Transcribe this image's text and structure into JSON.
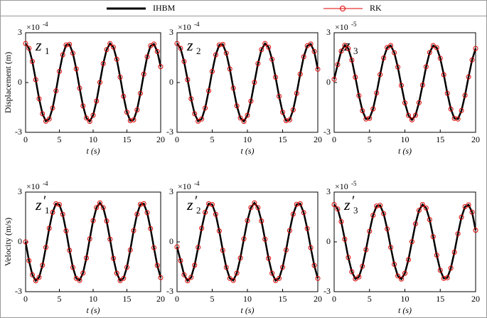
{
  "chart_data": [
    {
      "type": "line",
      "label": "z",
      "label_sub": "1",
      "ylabel": "Displacement (m)",
      "xlabel": "t (s)",
      "y_multiplier": "×10",
      "y_exponent": "-4",
      "xlim": [
        0,
        20
      ],
      "xticks": [
        0,
        5,
        10,
        15,
        20
      ],
      "ylim": [
        -3,
        3
      ],
      "yticks": [
        -3,
        0,
        3
      ],
      "x": [
        0,
        0.5,
        1,
        1.5,
        2,
        2.5,
        3,
        3.5,
        4,
        4.5,
        5,
        5.5,
        6,
        6.5,
        7,
        7.5,
        8,
        8.5,
        9,
        9.5,
        10,
        10.5,
        11,
        11.5,
        12,
        12.5,
        13,
        13.5,
        14,
        14.5,
        15,
        15.5,
        16,
        16.5,
        17,
        17.5,
        18,
        18.5,
        19,
        19.5,
        20
      ],
      "series": [
        {
          "name": "IHBM",
          "color": "#000000",
          "values": [
            2.35,
            2.06,
            1.27,
            0.17,
            -0.98,
            -1.88,
            -2.33,
            -2.2,
            -1.54,
            -0.5,
            0.67,
            1.67,
            2.26,
            2.3,
            1.77,
            0.82,
            -0.34,
            -1.41,
            -2.14,
            -2.34,
            -1.97,
            -1.12,
            0.01,
            1.14,
            1.98,
            2.35,
            2.13,
            1.4,
            0.32,
            -0.83,
            -1.79,
            -2.3,
            -2.25,
            -1.65,
            -0.65,
            0.51,
            1.55,
            2.21,
            2.32,
            1.87,
            0.96
          ]
        },
        {
          "name": "RK",
          "color": "#e00000",
          "values": [
            2.35,
            2.06,
            1.27,
            0.17,
            -0.98,
            -1.88,
            -2.33,
            -2.2,
            -1.54,
            -0.5,
            0.67,
            1.67,
            2.26,
            2.3,
            1.77,
            0.82,
            -0.34,
            -1.41,
            -2.14,
            -2.34,
            -1.97,
            -1.12,
            0.01,
            1.14,
            1.98,
            2.35,
            2.13,
            1.4,
            0.32,
            -0.83,
            -1.79,
            -2.3,
            -2.25,
            -1.65,
            -0.65,
            0.51,
            1.55,
            2.21,
            2.32,
            1.87,
            0.96
          ]
        }
      ]
    },
    {
      "type": "line",
      "label": "z",
      "label_sub": "2",
      "xlabel": "t (s)",
      "y_multiplier": "×10",
      "y_exponent": "-4",
      "xlim": [
        0,
        20
      ],
      "xticks": [
        0,
        5,
        10,
        15,
        20
      ],
      "ylim": [
        -3,
        3
      ],
      "yticks": [
        -3,
        0,
        3
      ],
      "x": [
        0,
        0.5,
        1,
        1.5,
        2,
        2.5,
        3,
        3.5,
        4,
        4.5,
        5,
        5.5,
        6,
        6.5,
        7,
        7.5,
        8,
        8.5,
        9,
        9.5,
        10,
        10.5,
        11,
        11.5,
        12,
        12.5,
        13,
        13.5,
        14,
        14.5,
        15,
        15.5,
        16,
        16.5,
        17,
        17.5,
        18,
        18.5,
        19,
        19.5,
        20
      ],
      "series": [
        {
          "name": "IHBM",
          "color": "#000000",
          "values": [
            2.35,
            2.06,
            1.27,
            0.17,
            -0.98,
            -1.88,
            -2.33,
            -2.2,
            -1.54,
            -0.5,
            0.67,
            1.67,
            2.26,
            2.3,
            1.77,
            0.82,
            -0.34,
            -1.41,
            -2.14,
            -2.34,
            -1.97,
            -1.12,
            0.01,
            1.14,
            1.98,
            2.35,
            2.13,
            1.4,
            0.32,
            -0.83,
            -1.79,
            -2.3,
            -2.25,
            -1.65,
            -0.65,
            0.51,
            1.55,
            2.21,
            2.32,
            1.87,
            0.8
          ]
        },
        {
          "name": "RK",
          "color": "#e00000",
          "values": [
            2.35,
            2.06,
            1.27,
            0.17,
            -0.98,
            -1.88,
            -2.33,
            -2.2,
            -1.54,
            -0.5,
            0.67,
            1.67,
            2.26,
            2.3,
            1.77,
            0.82,
            -0.34,
            -1.41,
            -2.14,
            -2.34,
            -1.97,
            -1.12,
            0.01,
            1.14,
            1.98,
            2.35,
            2.13,
            1.4,
            0.32,
            -0.83,
            -1.79,
            -2.3,
            -2.25,
            -1.65,
            -0.65,
            0.51,
            1.55,
            2.21,
            2.32,
            1.87,
            0.8
          ]
        }
      ]
    },
    {
      "type": "line",
      "label": "z",
      "label_sub": "3",
      "xlabel": "t (s)",
      "y_multiplier": "×10",
      "y_exponent": "-5",
      "xlim": [
        0,
        20
      ],
      "xticks": [
        0,
        5,
        10,
        15,
        20
      ],
      "ylim": [
        -3,
        3
      ],
      "yticks": [
        -3,
        0,
        3
      ],
      "x": [
        0,
        0.5,
        1,
        1.5,
        2,
        2.5,
        3,
        3.5,
        4,
        4.5,
        5,
        5.5,
        6,
        6.5,
        7,
        7.5,
        8,
        8.5,
        9,
        9.5,
        10,
        10.5,
        11,
        11.5,
        12,
        12.5,
        13,
        13.5,
        14,
        14.5,
        15,
        15.5,
        16,
        16.5,
        17,
        17.5,
        18,
        18.5,
        19,
        19.5,
        20
      ],
      "series": [
        {
          "name": "IHBM",
          "color": "#000000",
          "values": [
            0.2,
            1.08,
            1.89,
            2.24,
            2.05,
            1.35,
            0.32,
            -0.79,
            -1.7,
            -2.2,
            -2.16,
            -1.59,
            -0.63,
            0.48,
            1.48,
            2.11,
            2.23,
            1.8,
            0.93,
            -0.17,
            -1.22,
            -1.98,
            -2.25,
            -1.97,
            -1.21,
            -0.15,
            0.95,
            1.81,
            2.23,
            2.1,
            1.46,
            0.47,
            -0.65,
            -1.6,
            -2.16,
            -2.2,
            -1.69,
            -0.77,
            0.34,
            1.36,
            2.05
          ]
        },
        {
          "name": "RK",
          "color": "#e00000",
          "values": [
            0.2,
            1.08,
            1.89,
            2.24,
            2.05,
            1.35,
            0.32,
            -0.79,
            -1.7,
            -2.2,
            -2.16,
            -1.59,
            -0.63,
            0.48,
            1.48,
            2.11,
            2.23,
            1.8,
            0.93,
            -0.17,
            -1.22,
            -1.98,
            -2.25,
            -1.97,
            -1.21,
            -0.15,
            0.95,
            1.81,
            2.23,
            2.1,
            1.46,
            0.47,
            -0.65,
            -1.6,
            -2.16,
            -2.2,
            -1.69,
            -0.77,
            0.34,
            1.36,
            2.05
          ]
        }
      ]
    },
    {
      "type": "line",
      "label": "z",
      "label_prime": "′",
      "label_sub": "1",
      "ylabel": "Velocity (m/s)",
      "xlabel": "t (s)",
      "y_multiplier": "×10",
      "y_exponent": "-4",
      "xlim": [
        0,
        20
      ],
      "xticks": [
        0,
        5,
        10,
        15,
        20
      ],
      "ylim": [
        -3,
        3
      ],
      "yticks": [
        -3,
        0,
        3
      ],
      "x": [
        0,
        0.5,
        1,
        1.5,
        2,
        2.5,
        3,
        3.5,
        4,
        4.5,
        5,
        5.5,
        6,
        6.5,
        7,
        7.5,
        8,
        8.5,
        9,
        9.5,
        10,
        10.5,
        11,
        11.5,
        12,
        12.5,
        13,
        13.5,
        14,
        14.5,
        15,
        15.5,
        16,
        16.5,
        17,
        17.5,
        18,
        18.5,
        19,
        19.5,
        20
      ],
      "series": [
        {
          "name": "IHBM",
          "color": "#000000",
          "values": [
            0,
            -1.13,
            -1.98,
            -2.34,
            -2.14,
            -1.41,
            -0.33,
            0.82,
            1.78,
            2.3,
            2.25,
            1.66,
            0.66,
            -0.51,
            -1.54,
            -2.2,
            -2.32,
            -1.88,
            -0.97,
            0.18,
            1.28,
            2.07,
            2.35,
            2.06,
            1.26,
            0.16,
            -0.99,
            -1.89,
            -2.33,
            -2.2,
            -1.53,
            -0.49,
            0.68,
            1.67,
            2.26,
            2.3,
            1.76,
            0.8,
            -0.35,
            -1.42,
            -2.15
          ]
        },
        {
          "name": "RK",
          "color": "#e00000",
          "values": [
            0,
            -1.13,
            -1.98,
            -2.34,
            -2.14,
            -1.41,
            -0.33,
            0.82,
            1.78,
            2.3,
            2.25,
            1.66,
            0.66,
            -0.51,
            -1.54,
            -2.2,
            -2.32,
            -1.88,
            -0.97,
            0.18,
            1.28,
            2.07,
            2.35,
            2.06,
            1.26,
            0.16,
            -0.99,
            -1.89,
            -2.33,
            -2.2,
            -1.53,
            -0.49,
            0.68,
            1.67,
            2.26,
            2.3,
            1.76,
            0.8,
            -0.35,
            -1.42,
            -2.15
          ]
        }
      ]
    },
    {
      "type": "line",
      "label": "z",
      "label_prime": "′",
      "label_sub": "2",
      "xlabel": "t (s)",
      "y_multiplier": "×10",
      "y_exponent": "-4",
      "xlim": [
        0,
        20
      ],
      "xticks": [
        0,
        5,
        10,
        15,
        20
      ],
      "ylim": [
        -3,
        3
      ],
      "yticks": [
        -3,
        0,
        3
      ],
      "x": [
        0,
        0.5,
        1,
        1.5,
        2,
        2.5,
        3,
        3.5,
        4,
        4.5,
        5,
        5.5,
        6,
        6.5,
        7,
        7.5,
        8,
        8.5,
        9,
        9.5,
        10,
        10.5,
        11,
        11.5,
        12,
        12.5,
        13,
        13.5,
        14,
        14.5,
        15,
        15.5,
        16,
        16.5,
        17,
        17.5,
        18,
        18.5,
        19,
        19.5,
        20
      ],
      "series": [
        {
          "name": "IHBM",
          "color": "#000000",
          "values": [
            -0.3,
            -1.13,
            -1.98,
            -2.34,
            -2.14,
            -1.41,
            -0.33,
            0.82,
            1.78,
            2.3,
            2.25,
            1.66,
            0.66,
            -0.51,
            -1.54,
            -2.2,
            -2.32,
            -1.88,
            -0.97,
            0.18,
            1.28,
            2.07,
            2.35,
            2.06,
            1.26,
            0.16,
            -0.99,
            -1.89,
            -2.33,
            -2.2,
            -1.53,
            -0.49,
            0.68,
            1.67,
            2.26,
            2.3,
            1.76,
            0.8,
            -0.35,
            -1.42,
            -2.2
          ]
        },
        {
          "name": "RK",
          "color": "#e00000",
          "values": [
            -0.3,
            -1.13,
            -1.98,
            -2.34,
            -2.14,
            -1.41,
            -0.33,
            0.82,
            1.78,
            2.3,
            2.25,
            1.66,
            0.66,
            -0.51,
            -1.54,
            -2.2,
            -2.32,
            -1.88,
            -0.97,
            0.18,
            1.28,
            2.07,
            2.35,
            2.06,
            1.26,
            0.16,
            -0.99,
            -1.89,
            -2.33,
            -2.2,
            -1.53,
            -0.49,
            0.68,
            1.67,
            2.26,
            2.3,
            1.76,
            0.8,
            -0.35,
            -1.42,
            -2.2
          ]
        }
      ]
    },
    {
      "type": "line",
      "label": "z",
      "label_prime": "′",
      "label_sub": "3",
      "xlabel": "t (s)",
      "y_multiplier": "×10",
      "y_exponent": "-5",
      "xlim": [
        0,
        20
      ],
      "xticks": [
        0,
        5,
        10,
        15,
        20
      ],
      "ylim": [
        -3,
        3
      ],
      "yticks": [
        -3,
        0,
        3
      ],
      "x": [
        0,
        0.5,
        1,
        1.5,
        2,
        2.5,
        3,
        3.5,
        4,
        4.5,
        5,
        5.5,
        6,
        6.5,
        7,
        7.5,
        8,
        8.5,
        9,
        9.5,
        10,
        10.5,
        11,
        11.5,
        12,
        12.5,
        13,
        13.5,
        14,
        14.5,
        15,
        15.5,
        16,
        16.5,
        17,
        17.5,
        18,
        18.5,
        19,
        19.5,
        20
      ],
      "series": [
        {
          "name": "IHBM",
          "color": "#000000",
          "values": [
            2.25,
            1.98,
            1.22,
            0.16,
            -0.94,
            -1.8,
            -2.23,
            -2.11,
            -1.47,
            -0.47,
            0.64,
            1.6,
            2.16,
            2.2,
            1.7,
            0.78,
            -0.33,
            -1.35,
            -2.05,
            -2.24,
            -1.89,
            -1.07,
            0.01,
            1.09,
            1.9,
            2.25,
            2.04,
            1.34,
            0.31,
            -0.8,
            -1.71,
            -2.2,
            -2.16,
            -1.58,
            -0.62,
            0.49,
            1.49,
            2.12,
            2.23,
            1.79,
            0.7
          ]
        },
        {
          "name": "RK",
          "color": "#e00000",
          "values": [
            2.25,
            1.98,
            1.22,
            0.16,
            -0.94,
            -1.8,
            -2.23,
            -2.11,
            -1.47,
            -0.47,
            0.64,
            1.6,
            2.16,
            2.2,
            1.7,
            0.78,
            -0.33,
            -1.35,
            -2.05,
            -2.24,
            -1.89,
            -1.07,
            0.01,
            1.09,
            1.9,
            2.25,
            2.04,
            1.34,
            0.31,
            -0.8,
            -1.71,
            -2.2,
            -2.16,
            -1.58,
            -0.62,
            0.49,
            1.49,
            2.12,
            2.23,
            1.79,
            0.7
          ]
        }
      ]
    }
  ]
}
